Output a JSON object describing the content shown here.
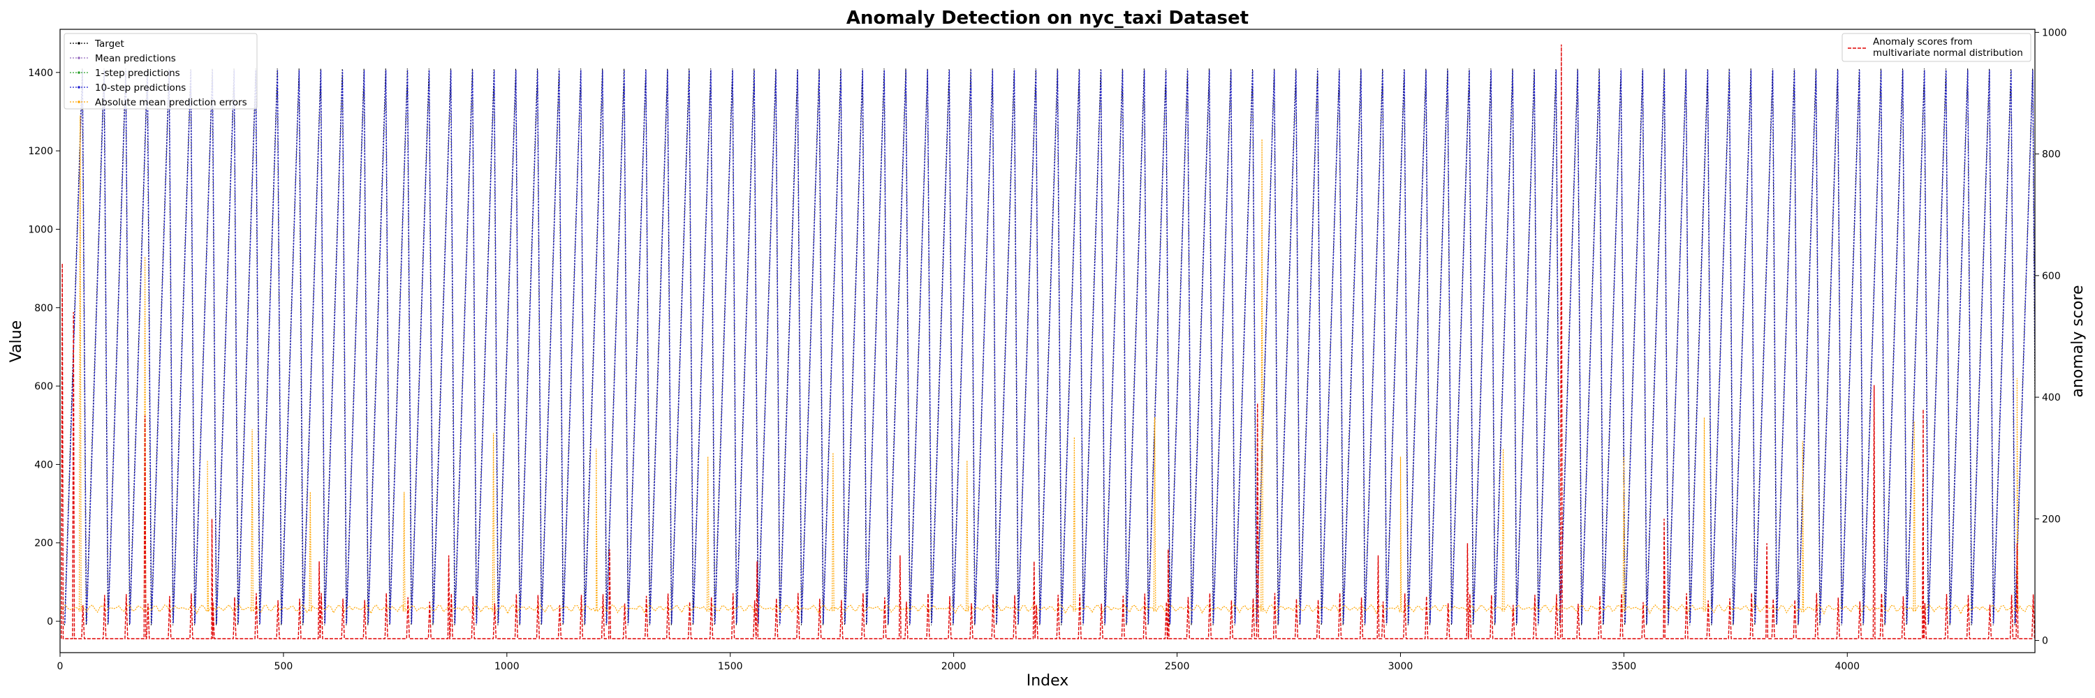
{
  "chart_data": {
    "type": "line",
    "title": "Anomaly Detection on nyc_taxi Dataset",
    "xlabel": "Index",
    "ylabel": "Value",
    "y2label": "anomaly score",
    "xlim": [
      0,
      4420
    ],
    "ylim": [
      -80,
      1510
    ],
    "y2lim": [
      -20,
      1005
    ],
    "xticks": [
      0,
      500,
      1000,
      1500,
      2000,
      2500,
      3000,
      3500,
      4000
    ],
    "yticks": [
      0,
      200,
      400,
      600,
      800,
      1000,
      1200,
      1400
    ],
    "y2ticks": [
      0,
      200,
      400,
      600,
      800,
      1000
    ],
    "grid": false,
    "legend_position": "top-left",
    "legend2_position": "top-right",
    "cycle": {
      "period": 48.5,
      "start": 10,
      "trough": -10,
      "peak": 1410,
      "count": 91
    },
    "series": [
      {
        "name": "Target",
        "color": "#000000",
        "style": "dotted-marker",
        "axis": "left"
      },
      {
        "name": "Mean predictions",
        "color": "#9467bd",
        "style": "dotted-marker",
        "axis": "left"
      },
      {
        "name": "1-step predictions",
        "color": "#2ca02c",
        "style": "dotted-marker",
        "axis": "left"
      },
      {
        "name": "10-step predictions",
        "color": "#1f1fd0",
        "style": "dotted-marker",
        "axis": "left"
      },
      {
        "name": "Absolute mean prediction errors",
        "color": "#ffa500",
        "style": "dotted-marker",
        "axis": "left"
      },
      {
        "name": "Anomaly scores from\nmultivariate normal distribution",
        "color": "#e00000",
        "style": "dashed",
        "axis": "right"
      }
    ],
    "error_spikes": [
      {
        "x": 45,
        "y": 1290
      },
      {
        "x": 190,
        "y": 930
      },
      {
        "x": 330,
        "y": 410
      },
      {
        "x": 430,
        "y": 490
      },
      {
        "x": 560,
        "y": 330
      },
      {
        "x": 770,
        "y": 330
      },
      {
        "x": 970,
        "y": 480
      },
      {
        "x": 1200,
        "y": 440
      },
      {
        "x": 1450,
        "y": 420
      },
      {
        "x": 1730,
        "y": 430
      },
      {
        "x": 2030,
        "y": 410
      },
      {
        "x": 2270,
        "y": 470
      },
      {
        "x": 2450,
        "y": 520
      },
      {
        "x": 2690,
        "y": 1230
      },
      {
        "x": 3000,
        "y": 420
      },
      {
        "x": 3230,
        "y": 440
      },
      {
        "x": 3500,
        "y": 420
      },
      {
        "x": 3680,
        "y": 520
      },
      {
        "x": 3900,
        "y": 460
      },
      {
        "x": 4150,
        "y": 510
      },
      {
        "x": 4380,
        "y": 620
      }
    ],
    "score_spikes": [
      {
        "x": 5,
        "y": 620
      },
      {
        "x": 30,
        "y": 540
      },
      {
        "x": 190,
        "y": 370
      },
      {
        "x": 340,
        "y": 200
      },
      {
        "x": 580,
        "y": 130
      },
      {
        "x": 870,
        "y": 140
      },
      {
        "x": 1230,
        "y": 150
      },
      {
        "x": 1560,
        "y": 130
      },
      {
        "x": 1880,
        "y": 140
      },
      {
        "x": 2180,
        "y": 130
      },
      {
        "x": 2480,
        "y": 150
      },
      {
        "x": 2680,
        "y": 390
      },
      {
        "x": 2950,
        "y": 140
      },
      {
        "x": 3150,
        "y": 160
      },
      {
        "x": 3360,
        "y": 980
      },
      {
        "x": 3590,
        "y": 200
      },
      {
        "x": 3820,
        "y": 160
      },
      {
        "x": 4060,
        "y": 420
      },
      {
        "x": 4170,
        "y": 380
      },
      {
        "x": 4380,
        "y": 160
      }
    ],
    "score_baseline": 3
  }
}
